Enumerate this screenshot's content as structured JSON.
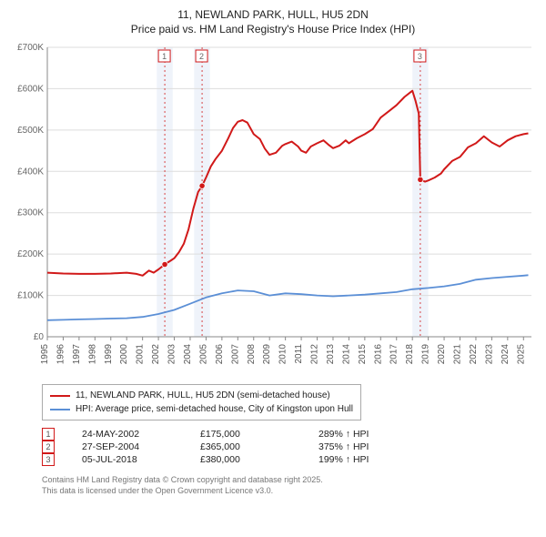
{
  "title": {
    "line1": "11, NEWLAND PARK, HULL, HU5 2DN",
    "line2": "Price paid vs. HM Land Registry's House Price Index (HPI)"
  },
  "chart": {
    "type": "line",
    "background_color": "#ffffff",
    "plot_background": "#ffffff",
    "grid_color": "#dddddd",
    "axis_color": "#888888",
    "ylim": [
      0,
      700000
    ],
    "ytick_step": 100000,
    "y_ticks": [
      0,
      100000,
      200000,
      300000,
      400000,
      500000,
      600000,
      700000
    ],
    "y_tick_labels": [
      "£0",
      "£100K",
      "£200K",
      "£300K",
      "£400K",
      "£500K",
      "£600K",
      "£700K"
    ],
    "xlim": [
      1995,
      2025.5
    ],
    "x_ticks": [
      1995,
      1996,
      1997,
      1998,
      1999,
      2000,
      2001,
      2002,
      2003,
      2004,
      2005,
      2006,
      2007,
      2008,
      2009,
      2010,
      2011,
      2012,
      2013,
      2014,
      2015,
      2016,
      2017,
      2018,
      2019,
      2020,
      2021,
      2022,
      2023,
      2024,
      2025
    ],
    "series": [
      {
        "id": "property",
        "color": "#d11919",
        "line_width": 2,
        "data": [
          [
            1995,
            155000
          ],
          [
            1996,
            153000
          ],
          [
            1997,
            152000
          ],
          [
            1998,
            152000
          ],
          [
            1999,
            153000
          ],
          [
            2000,
            155000
          ],
          [
            2000.6,
            152000
          ],
          [
            2001,
            148000
          ],
          [
            2001.4,
            160000
          ],
          [
            2001.7,
            155000
          ],
          [
            2002,
            163000
          ],
          [
            2002.4,
            175000
          ],
          [
            2002.8,
            185000
          ],
          [
            2003,
            190000
          ],
          [
            2003.3,
            205000
          ],
          [
            2003.6,
            225000
          ],
          [
            2003.9,
            260000
          ],
          [
            2004.2,
            310000
          ],
          [
            2004.5,
            350000
          ],
          [
            2004.75,
            365000
          ],
          [
            2005,
            385000
          ],
          [
            2005.3,
            412000
          ],
          [
            2005.6,
            430000
          ],
          [
            2006,
            450000
          ],
          [
            2006.4,
            480000
          ],
          [
            2006.7,
            505000
          ],
          [
            2007,
            520000
          ],
          [
            2007.3,
            524000
          ],
          [
            2007.6,
            518000
          ],
          [
            2008,
            490000
          ],
          [
            2008.4,
            478000
          ],
          [
            2008.7,
            455000
          ],
          [
            2009,
            440000
          ],
          [
            2009.4,
            445000
          ],
          [
            2009.8,
            462000
          ],
          [
            2010,
            466000
          ],
          [
            2010.4,
            472000
          ],
          [
            2010.8,
            460000
          ],
          [
            2011,
            450000
          ],
          [
            2011.3,
            445000
          ],
          [
            2011.6,
            460000
          ],
          [
            2012,
            468000
          ],
          [
            2012.4,
            475000
          ],
          [
            2012.7,
            465000
          ],
          [
            2013,
            456000
          ],
          [
            2013.4,
            462000
          ],
          [
            2013.8,
            475000
          ],
          [
            2014,
            468000
          ],
          [
            2014.5,
            480000
          ],
          [
            2015,
            490000
          ],
          [
            2015.5,
            502000
          ],
          [
            2016,
            530000
          ],
          [
            2016.5,
            545000
          ],
          [
            2017,
            560000
          ],
          [
            2017.5,
            580000
          ],
          [
            2017.9,
            592000
          ],
          [
            2018,
            595000
          ],
          [
            2018.2,
            570000
          ],
          [
            2018.4,
            540000
          ],
          [
            2018.5,
            380000
          ],
          [
            2018.8,
            375000
          ],
          [
            2019,
            378000
          ],
          [
            2019.4,
            385000
          ],
          [
            2019.8,
            395000
          ],
          [
            2020,
            405000
          ],
          [
            2020.5,
            425000
          ],
          [
            2021,
            435000
          ],
          [
            2021.5,
            458000
          ],
          [
            2022,
            468000
          ],
          [
            2022.5,
            485000
          ],
          [
            2023,
            470000
          ],
          [
            2023.5,
            460000
          ],
          [
            2024,
            475000
          ],
          [
            2024.5,
            485000
          ],
          [
            2025,
            490000
          ],
          [
            2025.3,
            492000
          ]
        ]
      },
      {
        "id": "hpi",
        "color": "#5b8fd6",
        "line_width": 1.8,
        "data": [
          [
            1995,
            40000
          ],
          [
            1996,
            41000
          ],
          [
            1997,
            42000
          ],
          [
            1998,
            43000
          ],
          [
            1999,
            44000
          ],
          [
            2000,
            45000
          ],
          [
            2001,
            48000
          ],
          [
            2002,
            55000
          ],
          [
            2003,
            65000
          ],
          [
            2004,
            80000
          ],
          [
            2005,
            95000
          ],
          [
            2006,
            105000
          ],
          [
            2007,
            112000
          ],
          [
            2008,
            110000
          ],
          [
            2009,
            100000
          ],
          [
            2010,
            105000
          ],
          [
            2011,
            103000
          ],
          [
            2012,
            100000
          ],
          [
            2013,
            98000
          ],
          [
            2014,
            100000
          ],
          [
            2015,
            102000
          ],
          [
            2016,
            105000
          ],
          [
            2017,
            108000
          ],
          [
            2018,
            115000
          ],
          [
            2019,
            118000
          ],
          [
            2020,
            122000
          ],
          [
            2021,
            128000
          ],
          [
            2022,
            138000
          ],
          [
            2023,
            142000
          ],
          [
            2024,
            145000
          ],
          [
            2025,
            148000
          ],
          [
            2025.3,
            149000
          ]
        ]
      }
    ],
    "markers": [
      {
        "n": "1",
        "x": 2002.4,
        "y": 175000,
        "color": "#d11919"
      },
      {
        "n": "2",
        "x": 2004.75,
        "y": 365000,
        "color": "#d11919"
      },
      {
        "n": "3",
        "x": 2018.5,
        "y": 380000,
        "color": "#d11919"
      }
    ],
    "marker_box_border": "#d11919",
    "marker_box_text": "#666666",
    "vertical_band_color": "#e8eef8"
  },
  "legend": {
    "items": [
      {
        "color": "#d11919",
        "text": "11, NEWLAND PARK, HULL, HU5 2DN (semi-detached house)"
      },
      {
        "color": "#5b8fd6",
        "text": "HPI: Average price, semi-detached house, City of Kingston upon Hull"
      }
    ]
  },
  "sales": [
    {
      "n": "1",
      "date": "24-MAY-2002",
      "price": "£175,000",
      "hpi": "289% ↑ HPI"
    },
    {
      "n": "2",
      "date": "27-SEP-2004",
      "price": "£365,000",
      "hpi": "375% ↑ HPI"
    },
    {
      "n": "3",
      "date": "05-JUL-2018",
      "price": "£380,000",
      "hpi": "199% ↑ HPI"
    }
  ],
  "disclaimer": {
    "line1": "Contains HM Land Registry data © Crown copyright and database right 2025.",
    "line2": "This data is licensed under the Open Government Licence v3.0."
  },
  "colors": {
    "marker_border": "#d11919",
    "text": "#222222",
    "muted": "#777777"
  }
}
